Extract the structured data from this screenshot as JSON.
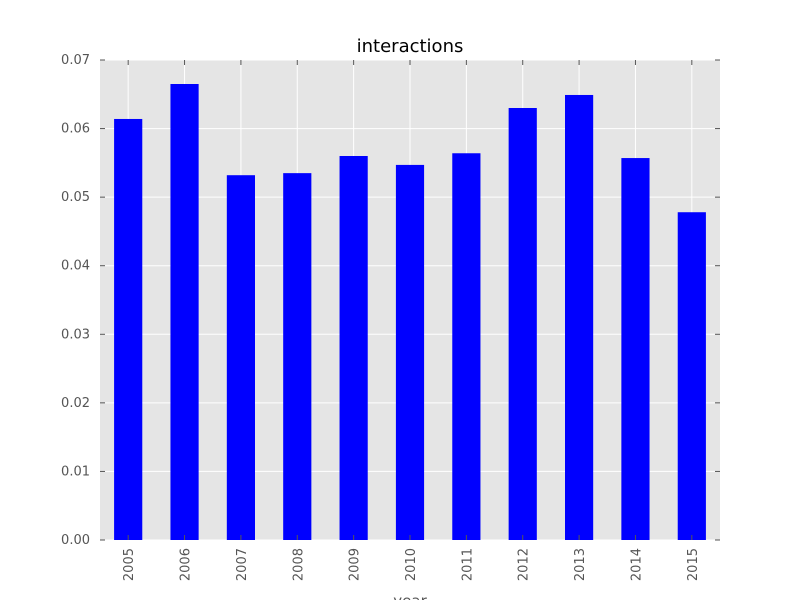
{
  "chart_data": {
    "type": "bar",
    "title": "interactions",
    "xlabel": "year",
    "ylabel": "",
    "categories": [
      "2005",
      "2006",
      "2007",
      "2008",
      "2009",
      "2010",
      "2011",
      "2012",
      "2013",
      "2014",
      "2015"
    ],
    "values": [
      0.0614,
      0.0665,
      0.0532,
      0.0535,
      0.056,
      0.0547,
      0.0564,
      0.063,
      0.0649,
      0.0557,
      0.0478
    ],
    "yticks": [
      "0.00",
      "0.01",
      "0.02",
      "0.03",
      "0.04",
      "0.05",
      "0.06",
      "0.07"
    ],
    "ylim": [
      0,
      0.07
    ],
    "grid": true,
    "legend": "none",
    "colors": {
      "bar": "#0000ff",
      "plot_background": "#e5e5e5",
      "grid": "#ffffff",
      "tick_text": "#555555"
    }
  }
}
